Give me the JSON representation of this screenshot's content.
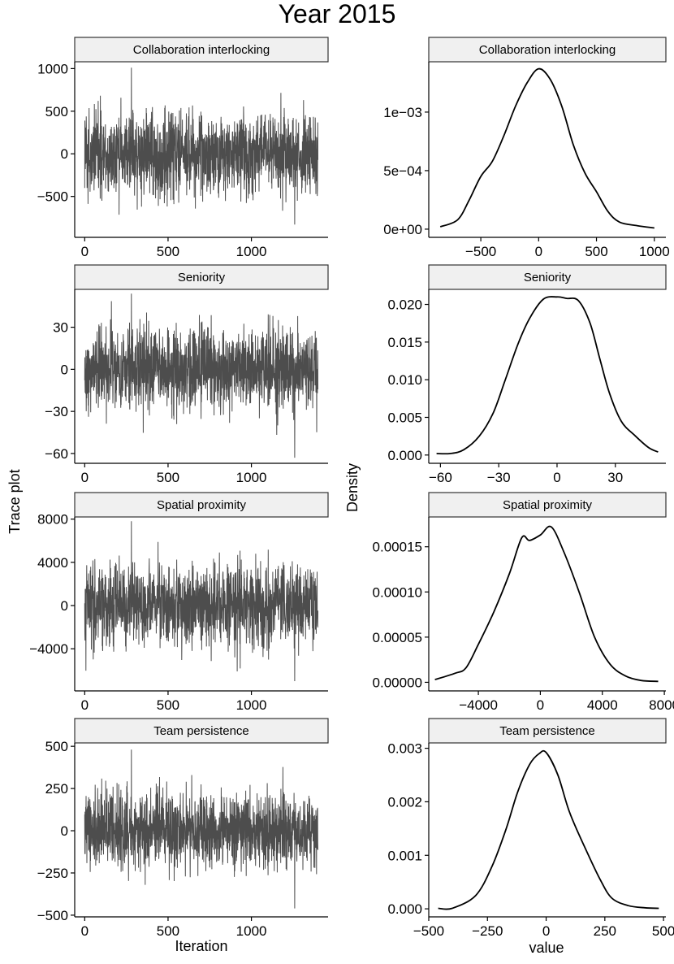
{
  "title": "Year  2015",
  "chart_data": [
    {
      "type": "line",
      "subtype": "trace",
      "facet": "Collaboration interlocking",
      "xlabel": "Iteration",
      "ylabel": "Trace plot",
      "xlim": [
        -60,
        1460
      ],
      "ylim": [
        -980,
        1080
      ],
      "xticks": [
        0,
        500,
        1000
      ],
      "xtick_labels": [
        "0",
        "500",
        "1000"
      ],
      "yticks": [
        -500,
        0,
        500,
        1000
      ],
      "ytick_labels": [
        "−500",
        "0",
        "500",
        "1000"
      ],
      "n_iterations": 1400,
      "trace_summary": {
        "center": 0,
        "sd": 280,
        "min": -830,
        "max": 1010
      }
    },
    {
      "type": "line",
      "subtype": "density",
      "facet": "Collaboration interlocking",
      "xlabel": "value",
      "ylabel": "Density",
      "xlim": [
        -950,
        1100
      ],
      "ylim": [
        -7e-05,
        0.00143
      ],
      "xticks": [
        -500,
        0,
        500,
        1000
      ],
      "xtick_labels": [
        "−500",
        "0",
        "500",
        "1000"
      ],
      "yticks": [
        0,
        0.0005,
        0.001
      ],
      "ytick_labels": [
        "0e+00",
        "5e−04",
        "1e−03"
      ],
      "x": [
        -850,
        -700,
        -600,
        -500,
        -400,
        -300,
        -200,
        -100,
        0,
        100,
        200,
        300,
        400,
        500,
        600,
        700,
        850,
        1000
      ],
      "y": [
        2e-05,
        8e-05,
        0.00025,
        0.00045,
        0.00058,
        0.0008,
        0.00105,
        0.00125,
        0.00137,
        0.00128,
        0.00105,
        0.00072,
        0.00048,
        0.00032,
        0.00015,
        6e-05,
        3e-05,
        1e-05
      ]
    },
    {
      "type": "line",
      "subtype": "trace",
      "facet": "Seniority",
      "xlabel": "Iteration",
      "ylabel": "Trace plot",
      "xlim": [
        -60,
        1460
      ],
      "ylim": [
        -67,
        57
      ],
      "xticks": [
        0,
        500,
        1000
      ],
      "xtick_labels": [
        "0",
        "500",
        "1000"
      ],
      "yticks": [
        -60,
        -30,
        0,
        30
      ],
      "ytick_labels": [
        "−60",
        "−30",
        "0",
        "30"
      ],
      "n_iterations": 1400,
      "trace_summary": {
        "center": 0,
        "sd": 17,
        "min": -63,
        "max": 54
      }
    },
    {
      "type": "line",
      "subtype": "density",
      "facet": "Seniority",
      "xlabel": "value",
      "ylabel": "Density",
      "xlim": [
        -66,
        56
      ],
      "ylim": [
        -0.0011,
        0.022
      ],
      "xticks": [
        -60,
        -30,
        0,
        30
      ],
      "xtick_labels": [
        "−60",
        "−30",
        "0",
        "30"
      ],
      "yticks": [
        0,
        0.005,
        0.01,
        0.015,
        0.02
      ],
      "ytick_labels": [
        "0.000",
        "0.005",
        "0.010",
        "0.015",
        "0.020"
      ],
      "x": [
        -62,
        -55,
        -48,
        -40,
        -33,
        -27,
        -20,
        -14,
        -7,
        0,
        5,
        11,
        17,
        22,
        27,
        33,
        40,
        47,
        52
      ],
      "y": [
        0.0002,
        0.0002,
        0.0007,
        0.0025,
        0.0055,
        0.0097,
        0.0148,
        0.0182,
        0.0207,
        0.021,
        0.0208,
        0.0205,
        0.0175,
        0.0128,
        0.0082,
        0.0045,
        0.0026,
        0.001,
        0.0004
      ]
    },
    {
      "type": "line",
      "subtype": "trace",
      "facet": "Spatial proximity",
      "xlabel": "Iteration",
      "ylabel": "Trace plot",
      "xlim": [
        -60,
        1460
      ],
      "ylim": [
        -7900,
        8200
      ],
      "xticks": [
        0,
        500,
        1000
      ],
      "xtick_labels": [
        "0",
        "500",
        "1000"
      ],
      "yticks": [
        -4000,
        0,
        4000,
        8000
      ],
      "ytick_labels": [
        "−4000",
        "0",
        "4000",
        "8000"
      ],
      "n_iterations": 1400,
      "trace_summary": {
        "center": 0,
        "sd": 2200,
        "min": -7000,
        "max": 7800
      }
    },
    {
      "type": "line",
      "subtype": "density",
      "facet": "Spatial proximity",
      "xlabel": "value",
      "ylabel": "Density",
      "xlim": [
        -7200,
        8100
      ],
      "ylim": [
        -9.5e-06,
        0.000183
      ],
      "xticks": [
        -4000,
        0,
        4000,
        8000
      ],
      "xtick_labels": [
        "−4000",
        "0",
        "4000",
        "8000"
      ],
      "yticks": [
        0,
        5e-05,
        0.0001,
        0.00015
      ],
      "ytick_labels": [
        "0.00000",
        "0.00005",
        "0.00010",
        "0.00015"
      ],
      "x": [
        -6800,
        -5500,
        -4800,
        -4000,
        -3000,
        -2000,
        -1200,
        -700,
        0,
        700,
        1500,
        2500,
        3500,
        4500,
        5500,
        6500,
        7600
      ],
      "y": [
        3e-06,
        1e-05,
        1.6e-05,
        4.2e-05,
        7.8e-05,
        0.00012,
        0.00016,
        0.000157,
        0.000163,
        0.000172,
        0.000145,
        0.0001,
        5e-05,
        2e-05,
        7e-06,
        2e-06,
        1e-06
      ]
    },
    {
      "type": "line",
      "subtype": "trace",
      "facet": "Team persistence",
      "xlabel": "Iteration",
      "ylabel": "Trace plot",
      "xlim": [
        -60,
        1460
      ],
      "ylim": [
        -510,
        520
      ],
      "xticks": [
        0,
        500,
        1000
      ],
      "xtick_labels": [
        "0",
        "500",
        "1000"
      ],
      "yticks": [
        -500,
        -250,
        0,
        250,
        500
      ],
      "ytick_labels": [
        "−500",
        "−250",
        "0",
        "250",
        "500"
      ],
      "n_iterations": 1400,
      "trace_summary": {
        "center": 0,
        "sd": 130,
        "min": -460,
        "max": 480
      }
    },
    {
      "type": "line",
      "subtype": "density",
      "facet": "Team persistence",
      "xlabel": "value",
      "ylabel": "Density",
      "xlim": [
        -500,
        510
      ],
      "ylim": [
        -0.00015,
        0.0031
      ],
      "xticks": [
        -500,
        -250,
        0,
        250,
        500
      ],
      "xtick_labels": [
        "−500",
        "−250",
        "0",
        "250",
        "500"
      ],
      "yticks": [
        0,
        0.001,
        0.002,
        0.003
      ],
      "ytick_labels": [
        "0.000",
        "0.001",
        "0.002",
        "0.003"
      ],
      "x": [
        -460,
        -400,
        -300,
        -230,
        -170,
        -120,
        -70,
        -30,
        0,
        50,
        100,
        170,
        230,
        280,
        350,
        420,
        480
      ],
      "y": [
        1e-05,
        1e-05,
        0.00025,
        0.0008,
        0.0015,
        0.0022,
        0.0027,
        0.0029,
        0.00292,
        0.0025,
        0.0018,
        0.0011,
        0.00055,
        0.0002,
        6e-05,
        2e-05,
        1e-05
      ]
    }
  ]
}
